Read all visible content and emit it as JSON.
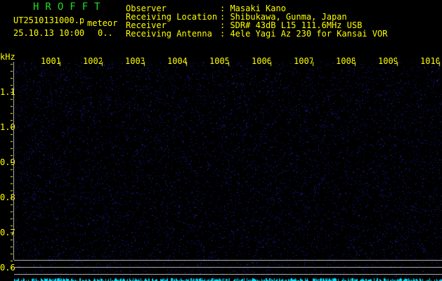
{
  "header": {
    "app_title": "HROFFT",
    "filename": "UT2510131000.png",
    "mode": "meteor",
    "datetime": "25.10.13 10:00",
    "count": "0..",
    "info": [
      {
        "label": "Observer",
        "value": "Masaki Kano"
      },
      {
        "label": "Receiving Location",
        "value": "Shibukawa, Gunma, Japan"
      },
      {
        "label": "Receiver",
        "value": "SDR# 43dB L15 111.6MHz USB"
      },
      {
        "label": "Receiving Antenna",
        "value": "4ele Yagi Az 230 for Kansai VOR"
      }
    ]
  },
  "axis": {
    "y_unit": "kHz",
    "y_labels": [
      "1.1",
      "1.0",
      "0.9",
      "0.8",
      "0.7",
      "0.6"
    ],
    "x_labels": [
      "1001",
      "1002",
      "1003",
      "1004",
      "1005",
      "1006",
      "1007",
      "1008",
      "1009",
      "1010"
    ]
  },
  "colors": {
    "text": "#ffff00",
    "title": "#22dd22",
    "noise": "#1a1aa0",
    "spikes": "#00e0ff",
    "lines": "#aaaaaa"
  }
}
